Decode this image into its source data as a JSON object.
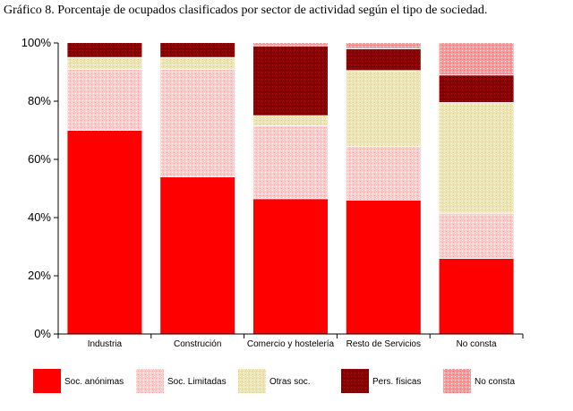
{
  "title": "Gráfico 8. Porcentaje de ocupados clasificados por sector de actividad según el tipo de sociedad.",
  "chart_data": {
    "type": "bar",
    "stacked": true,
    "categories": [
      "Industria",
      "Construción",
      "Comercio y hostelería",
      "Resto de Servicios",
      "No consta"
    ],
    "ylim": [
      0,
      100
    ],
    "yticks": [
      "0%",
      "20%",
      "40%",
      "60%",
      "80%",
      "100%"
    ],
    "grid": true,
    "legend_position": "bottom",
    "series": [
      {
        "name": "Soc. anónimas",
        "color": "#ff0000",
        "pattern": "solid",
        "values": [
          70,
          54,
          46.5,
          46,
          26
        ]
      },
      {
        "name": "Soc. Limitadas",
        "color": "#ffcccc",
        "pattern": "dots",
        "values": [
          21,
          37,
          25,
          18.5,
          15.5
        ]
      },
      {
        "name": "Otras soc.",
        "color": "#f0e4b0",
        "pattern": "dots",
        "values": [
          4,
          4,
          3.5,
          26,
          38
        ]
      },
      {
        "name": "Pers. físicas",
        "color": "#8b0000",
        "pattern": "dots",
        "values": [
          5,
          5,
          24,
          7.5,
          9.5
        ]
      },
      {
        "name": "No consta",
        "color": "#ff9999",
        "pattern": "dots",
        "values": [
          0,
          0,
          1,
          2,
          11
        ]
      }
    ]
  }
}
